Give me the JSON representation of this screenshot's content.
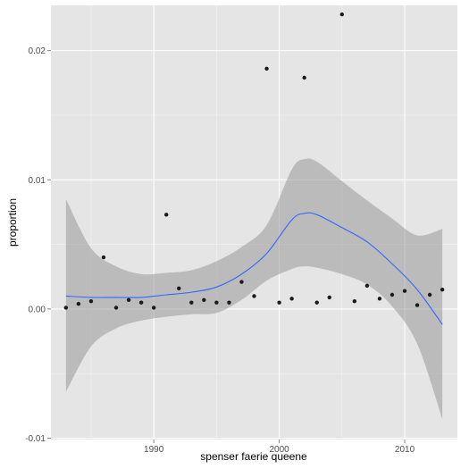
{
  "chart_data": {
    "type": "scatter",
    "title": "",
    "xlabel": "spenser faerie queene",
    "ylabel": "proportion",
    "xlim": [
      1981.8,
      2014.2
    ],
    "ylim": [
      -0.0101,
      0.0235
    ],
    "x_ticks": [
      1990,
      2000,
      2010
    ],
    "x_tick_labels": [
      "1990",
      "2000",
      "2010"
    ],
    "y_ticks": [
      -0.01,
      0.0,
      0.01,
      0.02
    ],
    "y_tick_labels": [
      "-0.01",
      "0.00",
      "0.01",
      "0.02"
    ],
    "grid": true,
    "legend": "none",
    "colors": {
      "panel_background": "#e5e5e5",
      "grid_major": "#ffffff",
      "grid_minor": "#f2f2f2",
      "points": "#1a1a1a",
      "smooth_line": "#3366ff",
      "confidence_band": "#999999"
    },
    "points": [
      {
        "x": 1983,
        "y": 0.0001
      },
      {
        "x": 1984,
        "y": 0.0004
      },
      {
        "x": 1985,
        "y": 0.0006
      },
      {
        "x": 1986,
        "y": 0.004
      },
      {
        "x": 1987,
        "y": 0.0001
      },
      {
        "x": 1988,
        "y": 0.0007
      },
      {
        "x": 1989,
        "y": 0.0005
      },
      {
        "x": 1990,
        "y": 0.0001
      },
      {
        "x": 1991,
        "y": 0.0073
      },
      {
        "x": 1992,
        "y": 0.0016
      },
      {
        "x": 1993,
        "y": 0.0005
      },
      {
        "x": 1994,
        "y": 0.0007
      },
      {
        "x": 1995,
        "y": 0.0005
      },
      {
        "x": 1996,
        "y": 0.0005
      },
      {
        "x": 1997,
        "y": 0.0021
      },
      {
        "x": 1998,
        "y": 0.001
      },
      {
        "x": 1999,
        "y": 0.0186
      },
      {
        "x": 2000,
        "y": 0.0005
      },
      {
        "x": 2001,
        "y": 0.0008
      },
      {
        "x": 2002,
        "y": 0.0179
      },
      {
        "x": 2003,
        "y": 0.0005
      },
      {
        "x": 2004,
        "y": 0.0009
      },
      {
        "x": 2005,
        "y": 0.0228
      },
      {
        "x": 2006,
        "y": 0.0006
      },
      {
        "x": 2007,
        "y": 0.0018
      },
      {
        "x": 2008,
        "y": 0.0008
      },
      {
        "x": 2009,
        "y": 0.0011
      },
      {
        "x": 2010,
        "y": 0.0014
      },
      {
        "x": 2011,
        "y": 0.0003
      },
      {
        "x": 2012,
        "y": 0.0011
      },
      {
        "x": 2013,
        "y": 0.0015
      }
    ],
    "smooth": {
      "x": [
        1983,
        1985,
        1987,
        1989,
        1991,
        1993,
        1995,
        1997,
        1999,
        2001,
        2002,
        2003,
        2005,
        2007,
        2009,
        2011,
        2013
      ],
      "y": [
        0.001,
        0.0009,
        0.0009,
        0.0009,
        0.0011,
        0.0013,
        0.0017,
        0.0027,
        0.0043,
        0.0069,
        0.0074,
        0.0073,
        0.0063,
        0.0052,
        0.0035,
        0.0015,
        -0.0012
      ],
      "lower": [
        -0.0064,
        -0.0029,
        -0.0015,
        -0.0009,
        -0.0006,
        -0.0004,
        -0.0003,
        0.0007,
        0.0022,
        0.0031,
        0.0033,
        0.0032,
        0.0027,
        0.0019,
        0.0002,
        -0.0027,
        -0.0085
      ],
      "upper": [
        0.0085,
        0.0047,
        0.0033,
        0.0027,
        0.0028,
        0.003,
        0.0037,
        0.0048,
        0.0065,
        0.0108,
        0.0116,
        0.0114,
        0.0099,
        0.0084,
        0.007,
        0.0057,
        0.0062
      ]
    }
  }
}
